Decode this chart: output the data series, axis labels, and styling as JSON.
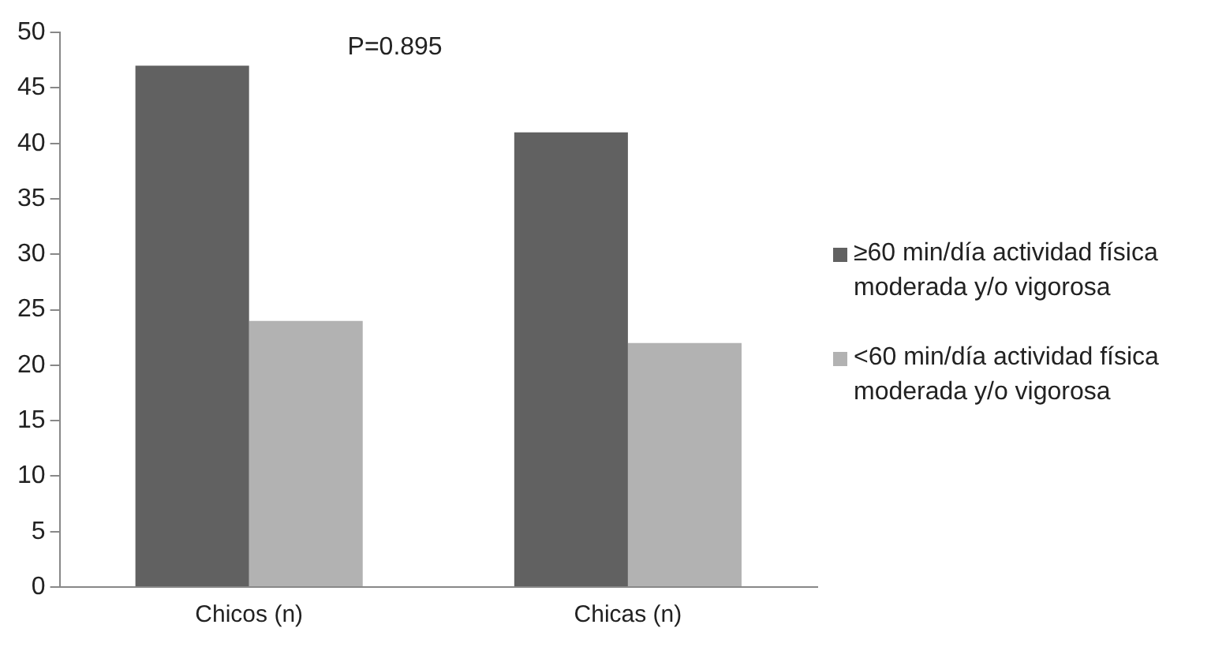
{
  "chart_data": {
    "type": "bar",
    "categories": [
      "Chicos (n)",
      "Chicas (n)"
    ],
    "series": [
      {
        "name": "≥60 min/día actividad física moderada y/o vigorosa",
        "color": "#616161",
        "values": [
          47,
          41
        ]
      },
      {
        "name": "<60 min/día actividad física moderada y/o vigorosa",
        "color": "#b2b2b2",
        "values": [
          24,
          22
        ]
      }
    ],
    "ylim": [
      0,
      50
    ],
    "yticks": [
      0,
      5,
      10,
      15,
      20,
      25,
      30,
      35,
      40,
      45,
      50
    ],
    "grid": false,
    "legend": "right",
    "annotations": [
      "P=0.895"
    ]
  }
}
